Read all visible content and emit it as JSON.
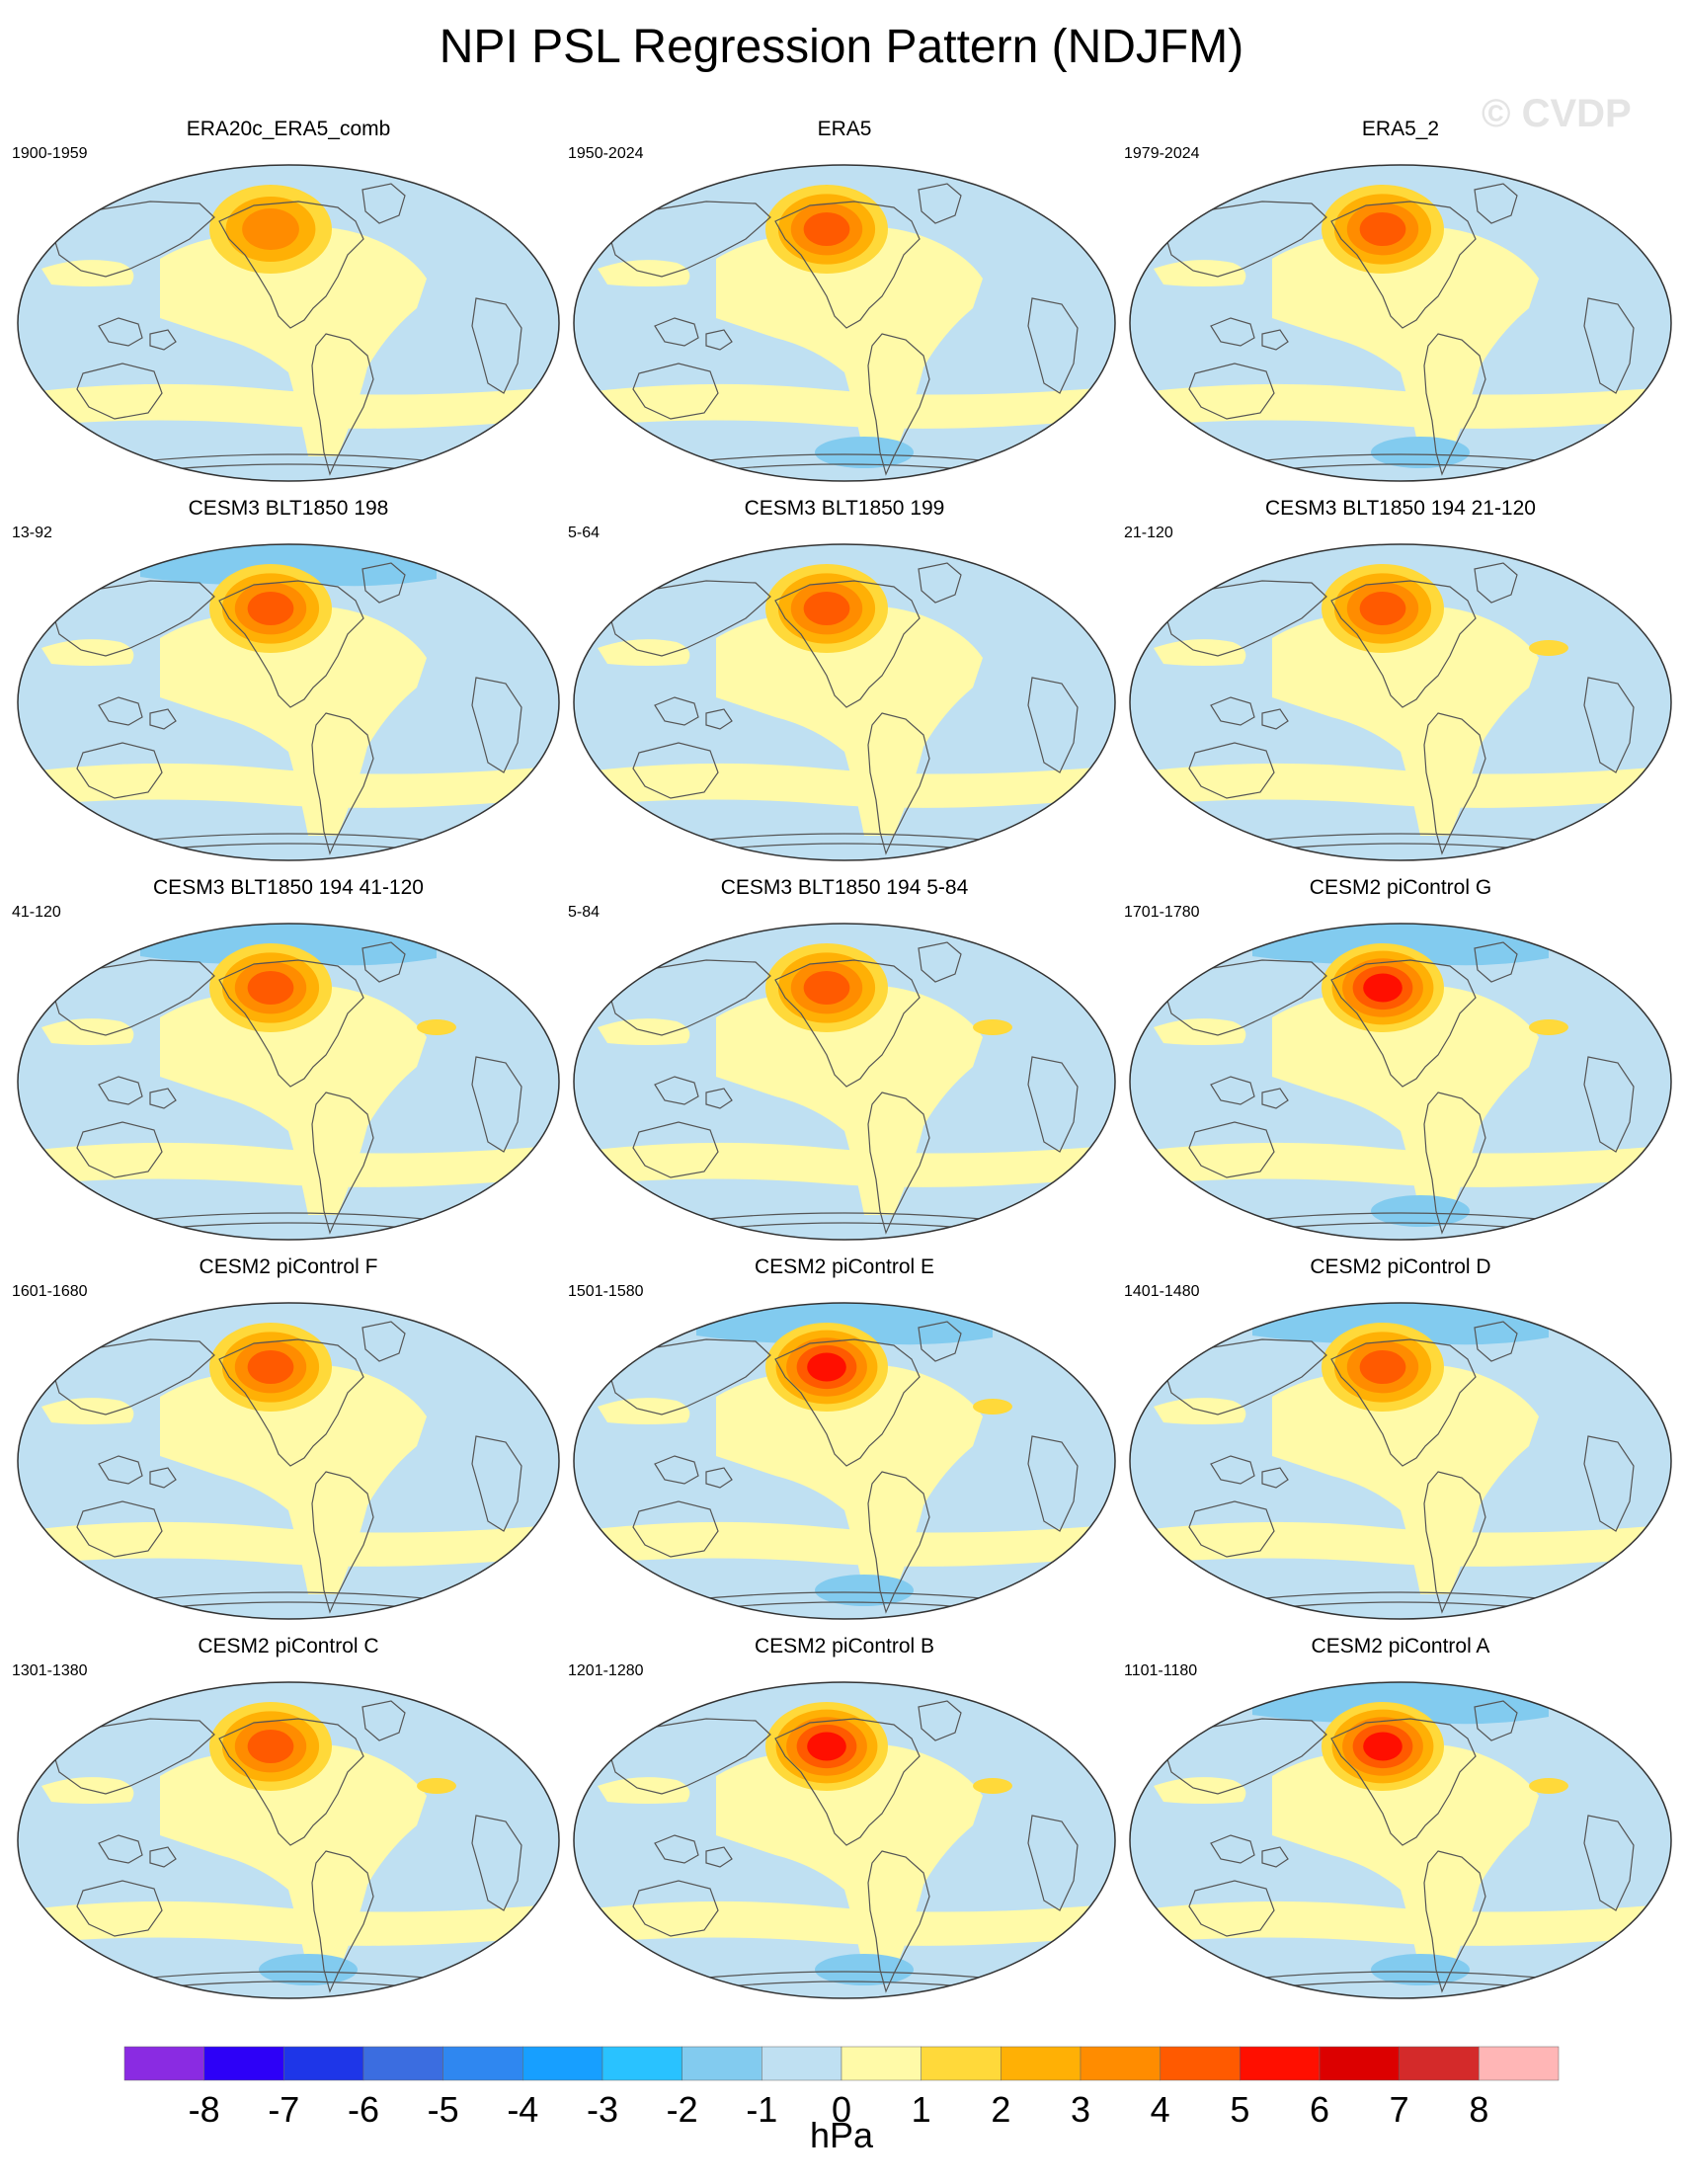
{
  "figure": {
    "title": "NPI PSL Regression Pattern (NDJFM)",
    "watermark": "© CVDP"
  },
  "colors": {
    "land_outline": "#555555",
    "map_border": "#333333",
    "ocean_base": "#bfe0f2"
  },
  "panels": [
    {
      "title": "ERA20c_ERA5_comb",
      "period": "1900-1959",
      "south_blue": 0,
      "arctic": 0,
      "atl_high": 0,
      "low_peak": 4.4
    },
    {
      "title": "ERA5",
      "period": "1950-2024",
      "south_blue": 1,
      "arctic": 0,
      "atl_high": 0,
      "low_peak": 4.6
    },
    {
      "title": "ERA5_2",
      "period": "1979-2024",
      "south_blue": 1,
      "arctic": 0,
      "atl_high": 0,
      "low_peak": 4.5
    },
    {
      "title": "CESM3 BLT1850 198",
      "period": "13-92",
      "south_blue": 0,
      "arctic": 1,
      "atl_high": 0,
      "low_peak": 4.8
    },
    {
      "title": "CESM3 BLT1850 199",
      "period": "5-64",
      "south_blue": 0,
      "arctic": 0,
      "atl_high": 0,
      "low_peak": 5.3
    },
    {
      "title": "CESM3 BLT1850 194 21-120",
      "period": "21-120",
      "south_blue": 0,
      "arctic": 0,
      "atl_high": 1,
      "low_peak": 4.6
    },
    {
      "title": "CESM3 BLT1850 194 41-120",
      "period": "41-120",
      "south_blue": 0,
      "arctic": 1,
      "atl_high": 1,
      "low_peak": 4.7
    },
    {
      "title": "CESM3 BLT1850 194 5-84",
      "period": "5-84",
      "south_blue": 0,
      "arctic": 0,
      "atl_high": 1,
      "low_peak": 4.5
    },
    {
      "title": "CESM2 piControl G",
      "period": "1701-1780",
      "south_blue": 1,
      "arctic": 1,
      "atl_high": 1,
      "low_peak": 5.8
    },
    {
      "title": "CESM2 piControl F",
      "period": "1601-1680",
      "south_blue": 0,
      "arctic": 0,
      "atl_high": 0,
      "low_peak": 4.9
    },
    {
      "title": "CESM2 piControl E",
      "period": "1501-1580",
      "south_blue": 1,
      "arctic": 1,
      "atl_high": 1,
      "low_peak": 5.6
    },
    {
      "title": "CESM2 piControl D",
      "period": "1401-1480",
      "south_blue": 0,
      "arctic": 1,
      "atl_high": 0,
      "low_peak": 5.1
    },
    {
      "title": "CESM2 piControl C",
      "period": "1301-1380",
      "south_blue": 1,
      "arctic": 0,
      "atl_high": 1,
      "low_peak": 4.6
    },
    {
      "title": "CESM2 piControl B",
      "period": "1201-1280",
      "south_blue": 1,
      "arctic": 0,
      "atl_high": 1,
      "low_peak": 5.5
    },
    {
      "title": "CESM2 piControl A",
      "period": "1101-1180",
      "south_blue": 1,
      "arctic": 1,
      "atl_high": 1,
      "low_peak": 5.8
    }
  ],
  "colorbar": {
    "units": "hPa",
    "labels": [
      "-8",
      "-7",
      "-6",
      "-5",
      "-4",
      "-3",
      "-2",
      "-1",
      "0",
      "1",
      "2",
      "3",
      "4",
      "5",
      "6",
      "7",
      "8"
    ],
    "boundaries": [
      -8,
      -7,
      -6,
      -5,
      -4,
      -3,
      -2,
      -1,
      0,
      1,
      2,
      3,
      4,
      5,
      6,
      7,
      8
    ],
    "colors": [
      "#8a2be2",
      "#2d00f7",
      "#1e36e8",
      "#3b6de0",
      "#2f87f0",
      "#179fff",
      "#29c2ff",
      "#82cbef",
      "#bfe0f2",
      "#fffaa8",
      "#ffd93a",
      "#ffb005",
      "#ff8c00",
      "#ff5a00",
      "#ff0f00",
      "#dc0000",
      "#d42a2a",
      "#ffb6b6"
    ]
  }
}
